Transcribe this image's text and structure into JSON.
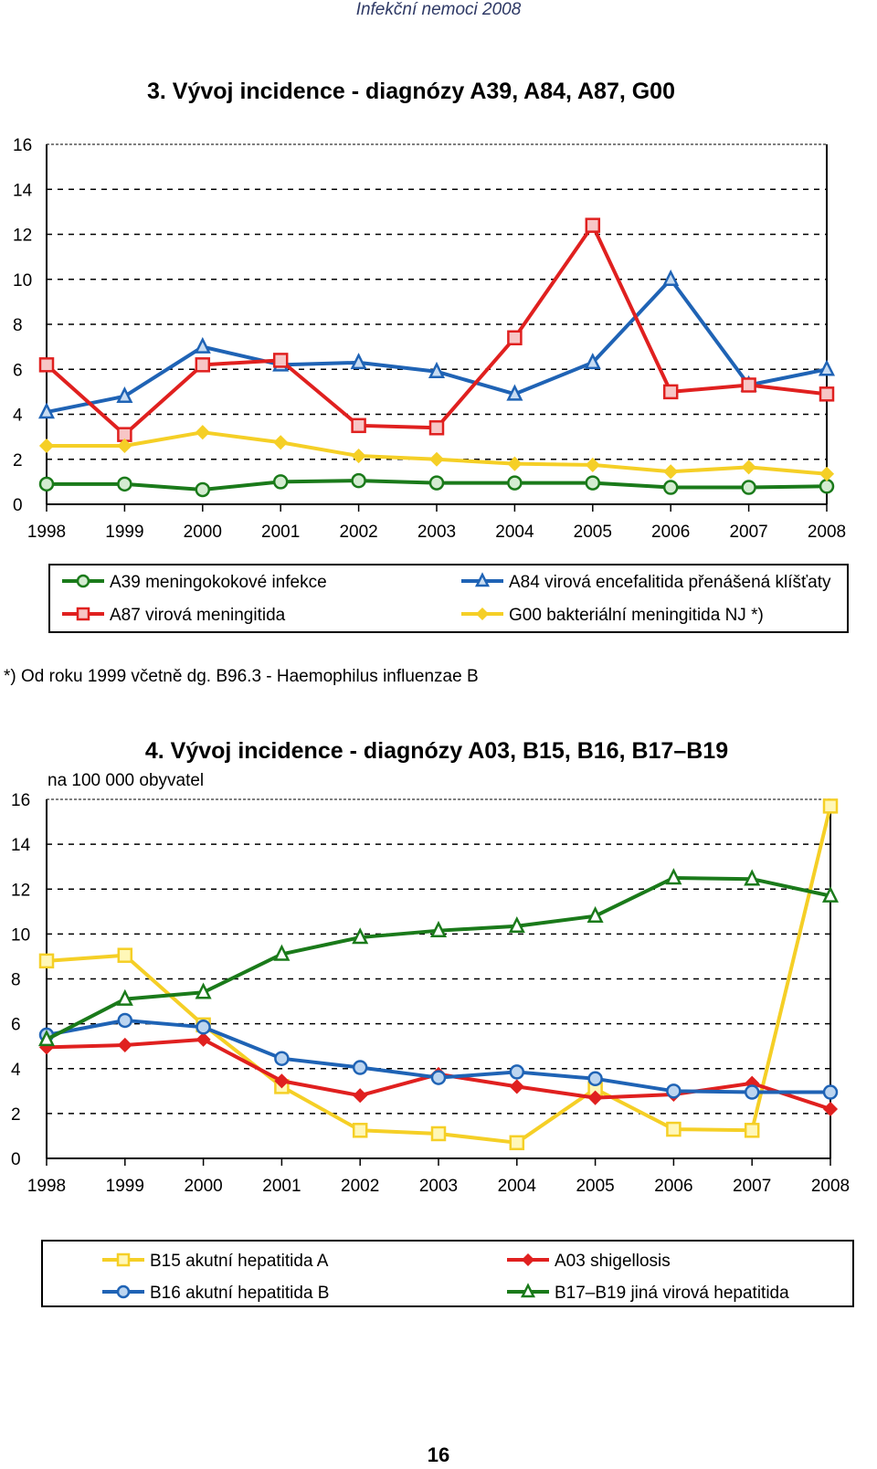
{
  "header": "Infekční nemoci 2008",
  "page_number": "16",
  "chart_data": [
    {
      "type": "line",
      "title": "3.  Vývoj incidence - diagnózy A39, A84, A87, G00",
      "subtitle": "",
      "ylim": [
        0,
        16
      ],
      "yticks": [
        "0",
        "2",
        "4",
        "6",
        "8",
        "10",
        "12",
        "14",
        "16"
      ],
      "categories": [
        "1998",
        "1999",
        "2000",
        "2001",
        "2002",
        "2003",
        "2004",
        "2005",
        "2006",
        "2007",
        "2008"
      ],
      "grid": true,
      "legend_position": "bottom",
      "footnote": "*)  Od roku 1999 včetně dg. B96.3  - Haemophilus influenzae B",
      "series": [
        {
          "name": "A39 meningokokové infekce",
          "color": "#1a7a1a",
          "marker": "circle",
          "values": [
            0.9,
            0.9,
            0.65,
            1.0,
            1.05,
            0.95,
            0.95,
            0.95,
            0.75,
            0.75,
            0.8
          ]
        },
        {
          "name": "A84 virová encefalitida přenášená klíšťaty",
          "color": "#1f63b5",
          "marker": "triangle",
          "values": [
            4.1,
            4.8,
            7.0,
            6.2,
            6.3,
            5.9,
            4.9,
            6.3,
            10.0,
            5.3,
            6.0
          ]
        },
        {
          "name": "A87 virová meningitida",
          "color": "#e0201f",
          "marker": "square",
          "values": [
            6.2,
            3.1,
            6.2,
            6.4,
            3.5,
            3.4,
            7.4,
            12.4,
            5.0,
            5.3,
            4.9
          ]
        },
        {
          "name": "G00 bakteriální meningitida NJ   *)",
          "color": "#f5cf26",
          "marker": "diamond",
          "values": [
            2.6,
            2.6,
            3.2,
            2.75,
            2.15,
            2.0,
            1.8,
            1.75,
            1.45,
            1.65,
            1.35
          ]
        }
      ]
    },
    {
      "type": "line",
      "title": "4.  Vývoj incidence - diagnózy A03, B15, B16, B17–B19",
      "subtitle": "na 100 000 obyvatel",
      "ylim": [
        0,
        16
      ],
      "yticks": [
        "0",
        "2",
        "4",
        "6",
        "8",
        "10",
        "12",
        "14",
        "16"
      ],
      "categories": [
        "1998",
        "1999",
        "2000",
        "2001",
        "2002",
        "2003",
        "2004",
        "2005",
        "2006",
        "2007",
        "2008"
      ],
      "grid": true,
      "legend_position": "bottom",
      "series": [
        {
          "name": "B15 akutní hepatitida A",
          "color": "#f5cf26",
          "marker": "square",
          "values": [
            8.8,
            9.05,
            5.95,
            3.2,
            1.25,
            1.1,
            0.7,
            3.1,
            1.3,
            1.25,
            15.7
          ]
        },
        {
          "name": "A03 shigellosis",
          "color": "#e0201f",
          "marker": "diamond",
          "values": [
            4.95,
            5.05,
            5.3,
            3.45,
            2.8,
            3.75,
            3.2,
            2.7,
            2.85,
            3.35,
            2.2
          ]
        },
        {
          "name": "B16 akutní hepatitida B",
          "color": "#1f63b5",
          "marker": "circle",
          "values": [
            5.5,
            6.15,
            5.85,
            4.45,
            4.05,
            3.6,
            3.85,
            3.55,
            3.0,
            2.95,
            2.95
          ]
        },
        {
          "name": "B17–B19 jiná virová hepatitida",
          "color": "#1a7a1a",
          "marker": "triangle",
          "values": [
            5.3,
            7.1,
            7.4,
            9.1,
            9.85,
            10.15,
            10.35,
            10.8,
            12.5,
            12.45,
            11.7
          ]
        }
      ]
    }
  ]
}
